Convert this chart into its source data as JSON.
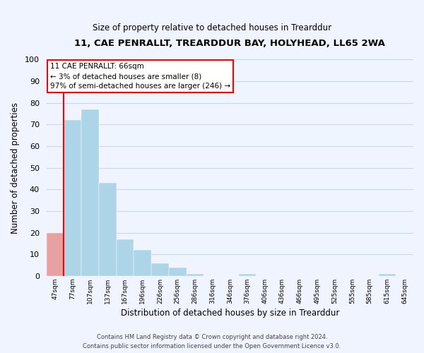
{
  "title_line1": "11, CAE PENRALLT, TREARDDUR BAY, HOLYHEAD, LL65 2WA",
  "title_line2": "Size of property relative to detached houses in Trearddur",
  "xlabel": "Distribution of detached houses by size in Trearddur",
  "ylabel": "Number of detached properties",
  "footer_line1": "Contains HM Land Registry data © Crown copyright and database right 2024.",
  "footer_line2": "Contains public sector information licensed under the Open Government Licence v3.0.",
  "bins": [
    "47sqm",
    "77sqm",
    "107sqm",
    "137sqm",
    "167sqm",
    "196sqm",
    "226sqm",
    "256sqm",
    "286sqm",
    "316sqm",
    "346sqm",
    "376sqm",
    "406sqm",
    "436sqm",
    "466sqm",
    "495sqm",
    "525sqm",
    "555sqm",
    "585sqm",
    "615sqm",
    "645sqm"
  ],
  "values": [
    20,
    72,
    77,
    43,
    17,
    12,
    6,
    4,
    1,
    0,
    0,
    1,
    0,
    0,
    0,
    0,
    0,
    0,
    0,
    1,
    0
  ],
  "bar_color_normal": "#aed4e8",
  "bar_color_highlight": "#e8a0a0",
  "highlight_index": 0,
  "ylim": [
    0,
    100
  ],
  "yticks": [
    0,
    10,
    20,
    30,
    40,
    50,
    60,
    70,
    80,
    90,
    100
  ],
  "annotation_line1": "11 CAE PENRALLT: 66sqm",
  "annotation_line2": "← 3% of detached houses are smaller (8)",
  "annotation_line3": "97% of semi-detached houses are larger (246) →",
  "grid_color": "#c8d8e8",
  "background_color": "#f0f4ff"
}
